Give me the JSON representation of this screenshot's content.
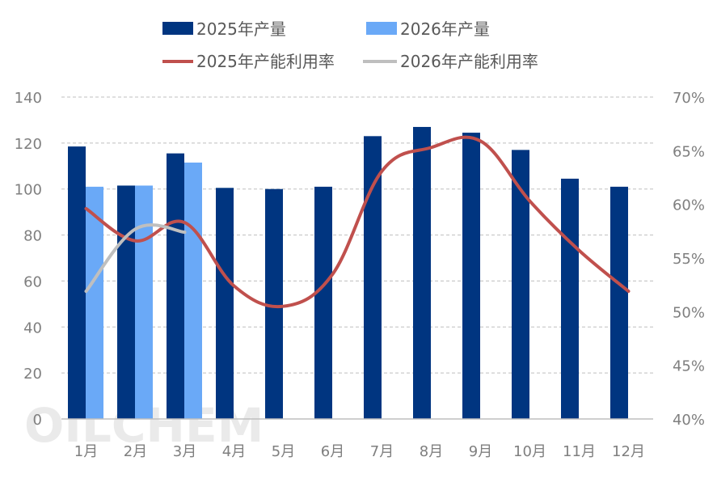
{
  "chart_data": {
    "type": "bar",
    "categories": [
      "1月",
      "2月",
      "3月",
      "4月",
      "5月",
      "6月",
      "7月",
      "8月",
      "9月",
      "10月",
      "11月",
      "12月"
    ],
    "series": [
      {
        "name": "2025年产量",
        "type": "bar",
        "axis": "left",
        "color": "#003580",
        "values": [
          118.5,
          101.5,
          115.5,
          100.5,
          100,
          101,
          123,
          127,
          124.5,
          117,
          104.5,
          101
        ]
      },
      {
        "name": "2026年产量",
        "type": "bar",
        "axis": "left",
        "color": "#6aa9f7",
        "values": [
          101,
          101.5,
          111.5,
          null,
          null,
          null,
          null,
          null,
          null,
          null,
          null,
          null
        ]
      },
      {
        "name": "2025年产能利用率",
        "type": "line",
        "axis": "right",
        "color": "#c0504d",
        "values": [
          59.6,
          56.6,
          58.3,
          52.4,
          50.5,
          53.5,
          63.1,
          65.3,
          65.9,
          60.3,
          55.7,
          51.9
        ]
      },
      {
        "name": "2026年产能利用率",
        "type": "line",
        "axis": "right",
        "color": "#bfbfbf",
        "values": [
          51.9,
          57.7,
          57.4,
          null,
          null,
          null,
          null,
          null,
          null,
          null,
          null,
          null
        ]
      }
    ],
    "y_left": {
      "min": 0,
      "max": 140,
      "step": 20,
      "ticks": [
        "0",
        "20",
        "40",
        "60",
        "80",
        "100",
        "120",
        "140"
      ]
    },
    "y_right": {
      "min": 40,
      "max": 70,
      "step": 5,
      "ticks": [
        "40%",
        "45%",
        "50%",
        "55%",
        "60%",
        "65%",
        "70%"
      ]
    },
    "grid": true,
    "legend_position": "top",
    "watermark": "OILCHEM"
  }
}
